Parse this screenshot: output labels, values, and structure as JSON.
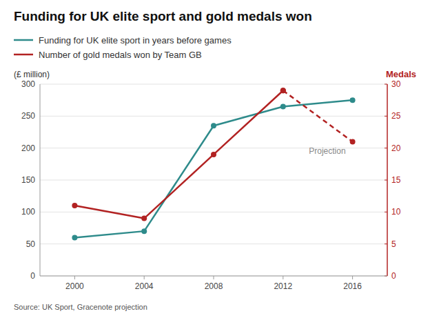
{
  "chart_data": {
    "type": "line",
    "title": "Funding for UK elite sport and gold medals won",
    "y_label": "(£ million)",
    "y2_label": "Medals",
    "source": "Source: UK Sport, Gracenote projection",
    "x": [
      2000,
      2004,
      2008,
      2012,
      2016
    ],
    "xlim": [
      1998,
      2018
    ],
    "xticks": [
      2000,
      2004,
      2008,
      2012,
      2016
    ],
    "ylim": [
      0,
      300
    ],
    "yticks": [
      0,
      50,
      100,
      150,
      200,
      250,
      300
    ],
    "y2lim": [
      0,
      30
    ],
    "y2ticks": [
      0,
      5,
      10,
      15,
      20,
      25,
      30
    ],
    "grid": true,
    "legend": "top",
    "series": [
      {
        "name": "Funding for UK elite sport in years before games",
        "color": "#2e8b8b",
        "values": [
          60,
          70,
          235,
          265,
          275
        ],
        "marker": "circle",
        "line_style": "solid"
      },
      {
        "name": "Number of gold medals won by Team GB",
        "color": "#b22222",
        "values": [
          11,
          9,
          19,
          29,
          null
        ],
        "axis": "y2",
        "marker": "circle",
        "line_style": "solid"
      },
      {
        "color": "#b22222",
        "values": [
          null,
          null,
          null,
          29,
          21
        ],
        "axis": "y2",
        "marker": "circle",
        "line_style": "dashed"
      }
    ],
    "annotations": [
      {
        "text": "Projection"
      }
    ]
  }
}
